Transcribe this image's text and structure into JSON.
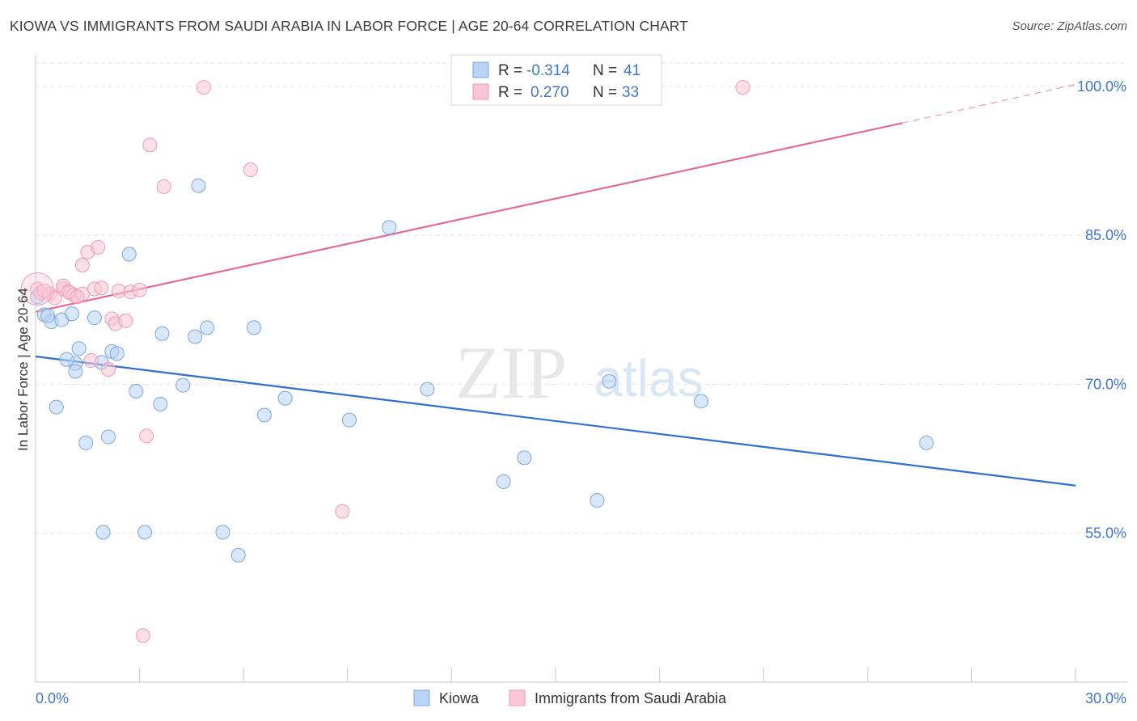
{
  "header": {
    "title": "KIOWA VS IMMIGRANTS FROM SAUDI ARABIA IN LABOR FORCE | AGE 20-64 CORRELATION CHART",
    "source": "Source: ZipAtlas.com"
  },
  "watermark": {
    "zip": "ZIP",
    "atlas": "atlas"
  },
  "colors": {
    "kiowa_fill": "#b8d3f5",
    "kiowa_stroke": "#7aa7e0",
    "kiowa_line": "#2f6fd0",
    "saudi_fill": "#f8c6d6",
    "saudi_stroke": "#ee9ab6",
    "saudi_line": "#e56a95",
    "tick_text": "#3f78c8",
    "grid": "#e2e2e2"
  },
  "legend": {
    "r_label": "R =",
    "n_label": "N =",
    "rows": [
      {
        "r_value": "-0.314",
        "n_value": "41"
      },
      {
        "r_value": "0.270",
        "n_value": "33"
      }
    ]
  },
  "chart_data": {
    "type": "scatter",
    "title": "KIOWA VS IMMIGRANTS FROM SAUDI ARABIA IN LABOR FORCE | AGE 20-64 CORRELATION CHART",
    "xlabel": "",
    "ylabel": "In Labor Force | Age 20-64",
    "xlim": [
      0,
      30
    ],
    "ylim": [
      40,
      103
    ],
    "x_tick_labels": [
      "0.0%",
      "30.0%"
    ],
    "y_ticks": [
      55,
      70,
      85,
      100
    ],
    "y_tick_labels": [
      "55.0%",
      "70.0%",
      "85.0%",
      "100.0%"
    ],
    "grid": true,
    "legend_position": "top-center",
    "series": [
      {
        "name": "Kiowa",
        "r": -0.314,
        "n": 41,
        "trend": {
          "x": [
            0,
            30
          ],
          "y": [
            72.8,
            59.8
          ]
        },
        "points": [
          [
            0.05,
            78.8
          ],
          [
            0.25,
            77.0
          ],
          [
            0.45,
            76.3
          ],
          [
            0.35,
            76.9
          ],
          [
            0.75,
            76.5
          ],
          [
            1.05,
            77.1
          ],
          [
            1.7,
            76.7
          ],
          [
            0.6,
            67.7
          ],
          [
            1.15,
            72.1
          ],
          [
            1.15,
            71.3
          ],
          [
            1.25,
            73.6
          ],
          [
            2.2,
            73.3
          ],
          [
            2.35,
            73.1
          ],
          [
            1.45,
            64.1
          ],
          [
            2.1,
            64.7
          ],
          [
            1.95,
            55.1
          ],
          [
            3.15,
            55.1
          ],
          [
            2.7,
            83.1
          ],
          [
            3.65,
            75.1
          ],
          [
            4.7,
            90.0
          ],
          [
            4.6,
            74.8
          ],
          [
            4.95,
            75.7
          ],
          [
            6.3,
            75.7
          ],
          [
            2.9,
            69.3
          ],
          [
            3.6,
            68.0
          ],
          [
            4.25,
            69.9
          ],
          [
            6.6,
            66.9
          ],
          [
            7.2,
            68.6
          ],
          [
            9.05,
            66.4
          ],
          [
            10.2,
            85.8
          ],
          [
            11.3,
            69.5
          ],
          [
            13.5,
            60.2
          ],
          [
            14.1,
            62.6
          ],
          [
            16.2,
            58.3
          ],
          [
            16.55,
            70.3
          ],
          [
            19.2,
            68.3
          ],
          [
            25.7,
            64.1
          ],
          [
            5.4,
            55.1
          ],
          [
            5.85,
            52.8
          ],
          [
            1.9,
            72.2
          ],
          [
            0.9,
            72.5
          ]
        ]
      },
      {
        "name": "Immigrants from Saudi Arabia",
        "r": 0.27,
        "n": 33,
        "trend": {
          "x": [
            0,
            25
          ],
          "y": [
            77.3,
            96.3
          ]
        },
        "trend_dashed": {
          "x": [
            25,
            30
          ],
          "y": [
            96.3,
            100.2
          ]
        },
        "points": [
          [
            0.05,
            79.6
          ],
          [
            0.15,
            79.2
          ],
          [
            0.4,
            79.1
          ],
          [
            0.55,
            78.7
          ],
          [
            0.8,
            79.6
          ],
          [
            0.8,
            79.9
          ],
          [
            1.0,
            79.2
          ],
          [
            1.1,
            79.0
          ],
          [
            1.35,
            79.1
          ],
          [
            1.35,
            82.0
          ],
          [
            1.5,
            83.3
          ],
          [
            1.7,
            79.6
          ],
          [
            1.8,
            83.8
          ],
          [
            1.9,
            79.7
          ],
          [
            2.2,
            76.6
          ],
          [
            2.3,
            76.1
          ],
          [
            2.4,
            79.4
          ],
          [
            2.6,
            76.4
          ],
          [
            2.75,
            79.3
          ],
          [
            3.0,
            79.5
          ],
          [
            1.6,
            72.4
          ],
          [
            2.1,
            71.5
          ],
          [
            3.2,
            64.8
          ],
          [
            3.3,
            94.1
          ],
          [
            3.7,
            89.9
          ],
          [
            4.85,
            99.9
          ],
          [
            6.2,
            91.6
          ],
          [
            8.85,
            57.2
          ],
          [
            3.1,
            44.7
          ],
          [
            20.4,
            99.9
          ],
          [
            0.25,
            79.4
          ],
          [
            0.95,
            79.3
          ],
          [
            1.2,
            78.8
          ]
        ]
      }
    ]
  },
  "bottom_legend": [
    "Kiowa",
    "Immigrants from Saudi Arabia"
  ]
}
